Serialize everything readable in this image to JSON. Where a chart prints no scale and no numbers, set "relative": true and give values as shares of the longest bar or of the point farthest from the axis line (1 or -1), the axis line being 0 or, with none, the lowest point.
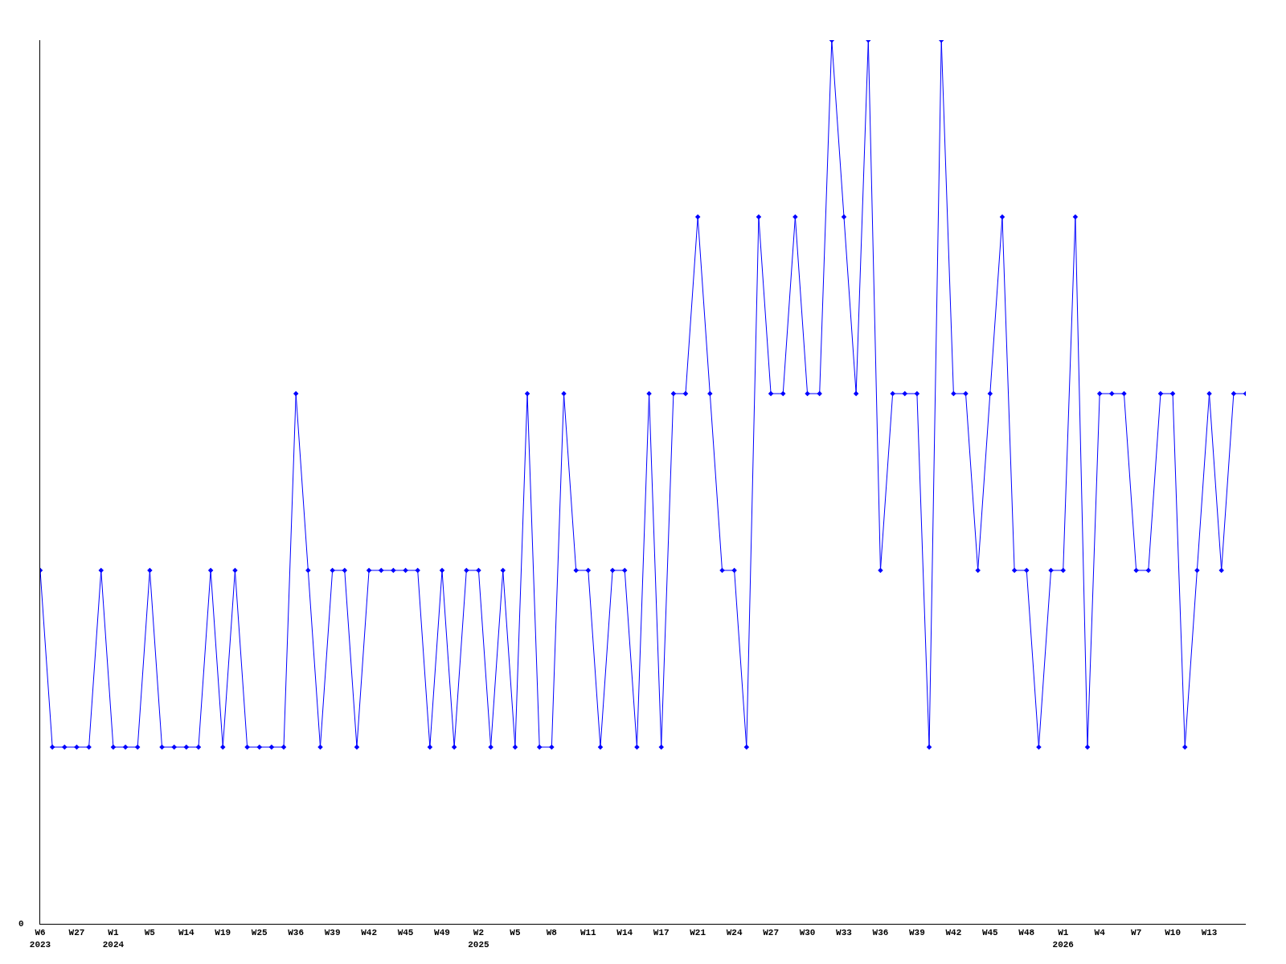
{
  "chart_data": {
    "type": "line",
    "relative": true,
    "marker": "diamond",
    "line_style": "solid",
    "annotations": [
      "0"
    ],
    "categories": [
      "W6\n2023",
      null,
      null,
      "W27",
      null,
      null,
      "W1\n2024",
      null,
      null,
      "W5",
      null,
      null,
      "W14",
      null,
      null,
      "W19",
      null,
      null,
      "W25",
      null,
      null,
      "W36",
      null,
      null,
      "W39",
      null,
      null,
      "W42",
      null,
      null,
      "W45",
      null,
      null,
      "W49",
      null,
      null,
      "W2\n2025",
      null,
      null,
      "W5",
      null,
      null,
      "W8",
      null,
      null,
      "W11",
      null,
      null,
      "W14",
      null,
      null,
      "W17",
      null,
      null,
      "W21",
      null,
      null,
      "W24",
      null,
      null,
      "W27",
      null,
      null,
      "W30",
      null,
      null,
      "W33",
      null,
      null,
      "W36",
      null,
      null,
      "W39",
      null,
      null,
      "W42",
      null,
      null,
      "W45",
      null,
      null,
      "W48",
      null,
      null,
      "W1\n2026",
      null,
      null,
      "W4",
      null,
      null,
      "W7",
      null,
      null,
      "W10",
      null,
      null,
      "W13",
      null,
      null,
      null
    ],
    "series": [
      {
        "color": "#0000ff",
        "values": [
          0.4,
          0.2,
          0.2,
          0.2,
          0.2,
          0.4,
          0.2,
          0.2,
          0.2,
          0.4,
          0.2,
          0.2,
          0.2,
          0.2,
          0.4,
          0.2,
          0.4,
          0.2,
          0.2,
          0.2,
          0.2,
          0.6,
          0.4,
          0.2,
          0.4,
          0.4,
          0.2,
          0.4,
          0.4,
          0.4,
          0.4,
          0.4,
          0.2,
          0.4,
          0.2,
          0.4,
          0.4,
          0.2,
          0.4,
          0.2,
          0.6,
          0.2,
          0.2,
          0.6,
          0.4,
          0.4,
          0.2,
          0.4,
          0.4,
          0.2,
          0.6,
          0.2,
          0.6,
          0.6,
          0.8,
          0.6,
          0.4,
          0.4,
          0.2,
          0.8,
          0.6,
          0.6,
          0.8,
          0.6,
          0.6,
          1,
          0.8,
          0.6,
          1,
          0.4,
          0.6,
          0.6,
          0.6,
          0.2,
          1,
          0.6,
          0.6,
          0.4,
          0.6,
          0.8,
          0.4,
          0.4,
          0.2,
          0.4,
          0.4,
          0.8,
          0.2,
          0.6,
          0.6,
          0.6,
          0.4,
          0.4,
          0.6,
          0.6,
          0.2,
          0.4,
          0.6,
          0.4,
          0.6,
          0.6
        ]
      }
    ]
  }
}
